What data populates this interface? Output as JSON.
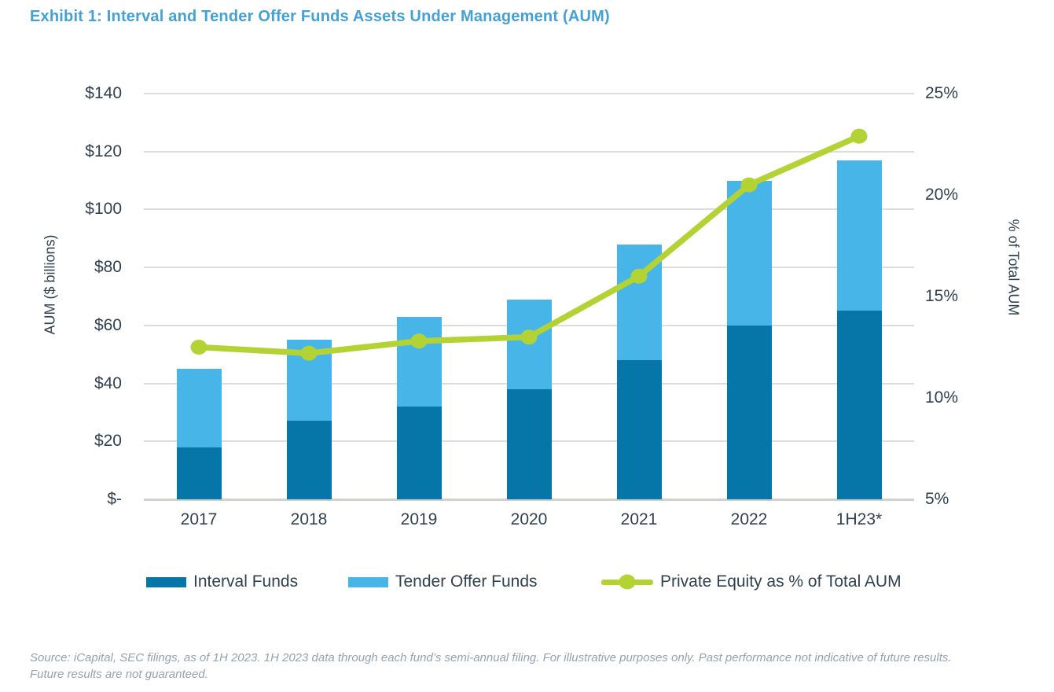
{
  "title": "Exhibit 1: Interval and Tender Offer Funds Assets Under Management (AUM)",
  "footer": {
    "line1": "Source: iCapital, SEC filings, as of 1H 2023. 1H 2023 data through each fund’s semi-annual filing. For illustrative purposes only. Past performance not indicative of future results.",
    "line2": "Future results are not guaranteed."
  },
  "legend": [
    {
      "label": "Interval Funds",
      "type": "swatch"
    },
    {
      "label": "Tender Offer Funds",
      "type": "swatch"
    },
    {
      "label": "Private Equity as % of Total AUM",
      "type": "line-marker"
    }
  ],
  "colors": {
    "title": "#43A1D5",
    "interval_funds": "#0576A7",
    "tender_offer_funds": "#47B5E7",
    "pe_line": "#B3D234",
    "axis_text": "#31414F",
    "gridline": "#DCDCD9",
    "baseline": "#D1D1CE",
    "footnote": "#94A2AD"
  },
  "chart_data": {
    "type": "bar",
    "subtype": "stacked-bar-with-line",
    "categories": [
      "2017",
      "2018",
      "2019",
      "2020",
      "2021",
      "2022",
      "1H23*"
    ],
    "bar_series": [
      {
        "name": "Interval Funds",
        "color": "#0576A7",
        "axis": "left",
        "values": [
          18,
          27,
          32,
          38,
          48,
          60,
          65
        ]
      },
      {
        "name": "Tender Offer Funds",
        "color": "#47B5E7",
        "axis": "left",
        "values": [
          27,
          28,
          31,
          31,
          40,
          50,
          52
        ]
      }
    ],
    "bar_totals": [
      45,
      55,
      63,
      69,
      88,
      110,
      117
    ],
    "line_series": {
      "name": "Private Equity as % of Total AUM",
      "color": "#B3D234",
      "axis": "right",
      "values": [
        12.5,
        12.2,
        12.8,
        13.0,
        16.0,
        20.5,
        22.9
      ]
    },
    "left_axis": {
      "title": "AUM ($ billions)",
      "min": 0,
      "max": 140,
      "tick_step": 20,
      "tick_labels": [
        "$-",
        "$20",
        "$40",
        "$60",
        "$80",
        "$100",
        "$120",
        "$140"
      ]
    },
    "right_axis": {
      "title": "% of Total AUM",
      "min": 5,
      "max": 25,
      "tick_step": 5,
      "tick_labels": [
        "5%",
        "10%",
        "15%",
        "20%",
        "25%"
      ]
    },
    "grid": true,
    "legend_position": "bottom"
  }
}
